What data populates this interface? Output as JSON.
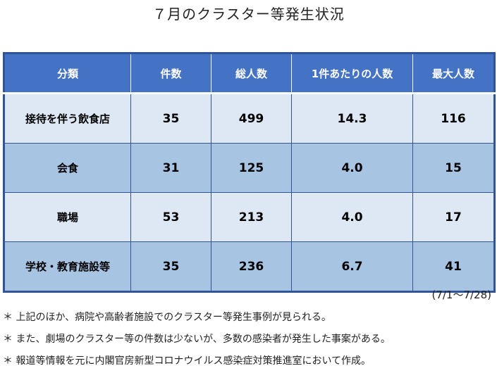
{
  "title": "７月のクラスター等発生状況",
  "table": {
    "headers": [
      "分類",
      "件数",
      "総人数",
      "1件あたりの人数",
      "最大人数"
    ],
    "rows": [
      {
        "category": "接待を伴う飲食店",
        "count": "35",
        "total": "499",
        "per_case": "14.3",
        "max": "116"
      },
      {
        "category": "会食",
        "count": "31",
        "total": "125",
        "per_case": "4.0",
        "max": "15"
      },
      {
        "category": "職場",
        "count": "53",
        "total": "213",
        "per_case": "4.0",
        "max": "17"
      },
      {
        "category": "学校・教育施設等",
        "count": "35",
        "total": "236",
        "per_case": "6.7",
        "max": "41"
      }
    ]
  },
  "period": "(7/1～7/28)",
  "notes": [
    "＊ 上記のほか、病院や高齢者施設でのクラスター等発生事例が見られる。",
    "＊ また、劇場のクラスター等の件数は少ないが、多数の感染者が発生した事案がある。",
    "＊ 報道等情報を元に内閣官房新型コロナウイルス感染症対策推進室において作成。"
  ]
}
